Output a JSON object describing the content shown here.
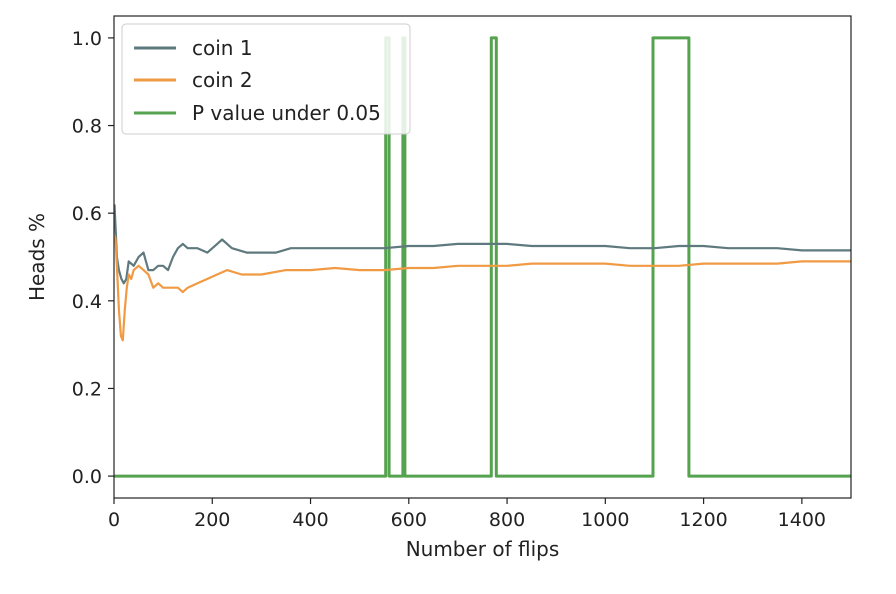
{
  "chart_data": {
    "type": "line",
    "xlabel": "Number of flips",
    "ylabel": "Heads %",
    "xlim": [
      0,
      1500
    ],
    "ylim": [
      -0.05,
      1.05
    ],
    "xticks": [
      0,
      200,
      400,
      600,
      800,
      1000,
      1200,
      1400
    ],
    "yticks": [
      0.0,
      0.2,
      0.4,
      0.6,
      0.8,
      1.0
    ],
    "xtick_labels": [
      "0",
      "200",
      "400",
      "600",
      "800",
      "1000",
      "1200",
      "1400"
    ],
    "ytick_labels": [
      "0.0",
      "0.2",
      "0.4",
      "0.6",
      "0.8",
      "1.0"
    ],
    "grid": false,
    "legend_position": "top-left",
    "series": [
      {
        "name": "coin 1",
        "color": "#5f7a7f",
        "x": [
          1,
          3,
          6,
          10,
          15,
          20,
          25,
          30,
          40,
          50,
          60,
          70,
          80,
          90,
          100,
          110,
          120,
          130,
          140,
          150,
          170,
          190,
          210,
          220,
          240,
          270,
          300,
          330,
          360,
          400,
          450,
          500,
          550,
          600,
          650,
          700,
          750,
          800,
          850,
          900,
          950,
          1000,
          1050,
          1100,
          1150,
          1200,
          1250,
          1300,
          1350,
          1400,
          1450,
          1500
        ],
        "y": [
          0.62,
          0.57,
          0.5,
          0.47,
          0.45,
          0.44,
          0.45,
          0.49,
          0.48,
          0.5,
          0.51,
          0.47,
          0.47,
          0.48,
          0.48,
          0.47,
          0.5,
          0.52,
          0.53,
          0.52,
          0.52,
          0.51,
          0.53,
          0.54,
          0.52,
          0.51,
          0.51,
          0.51,
          0.52,
          0.52,
          0.52,
          0.52,
          0.52,
          0.525,
          0.525,
          0.53,
          0.53,
          0.53,
          0.525,
          0.525,
          0.525,
          0.525,
          0.52,
          0.52,
          0.525,
          0.525,
          0.52,
          0.52,
          0.52,
          0.515,
          0.515,
          0.515
        ]
      },
      {
        "name": "coin 2",
        "color": "#f09a44",
        "x": [
          1,
          3,
          6,
          10,
          14,
          18,
          22,
          26,
          30,
          35,
          40,
          50,
          60,
          70,
          80,
          90,
          100,
          110,
          120,
          130,
          140,
          150,
          170,
          190,
          210,
          230,
          260,
          300,
          350,
          400,
          450,
          500,
          550,
          600,
          650,
          700,
          750,
          800,
          850,
          900,
          950,
          1000,
          1050,
          1100,
          1150,
          1200,
          1250,
          1300,
          1350,
          1400,
          1450,
          1500
        ],
        "y": [
          0.55,
          0.54,
          0.48,
          0.38,
          0.32,
          0.31,
          0.38,
          0.43,
          0.46,
          0.45,
          0.47,
          0.48,
          0.47,
          0.46,
          0.43,
          0.44,
          0.43,
          0.43,
          0.43,
          0.43,
          0.42,
          0.43,
          0.44,
          0.45,
          0.46,
          0.47,
          0.46,
          0.46,
          0.47,
          0.47,
          0.475,
          0.47,
          0.47,
          0.475,
          0.475,
          0.48,
          0.48,
          0.48,
          0.485,
          0.485,
          0.485,
          0.485,
          0.48,
          0.48,
          0.48,
          0.485,
          0.485,
          0.485,
          0.485,
          0.49,
          0.49,
          0.49
        ]
      },
      {
        "name": "P value under 0.05",
        "color": "#55a24f",
        "step_intervals": [
          [
            553,
            560
          ],
          [
            588,
            592
          ],
          [
            768,
            778
          ],
          [
            1097,
            1170
          ]
        ],
        "x": [
          0,
          553,
          553,
          560,
          560,
          588,
          588,
          592,
          592,
          768,
          768,
          778,
          778,
          1097,
          1097,
          1170,
          1170,
          1500
        ],
        "y": [
          0,
          0,
          1,
          1,
          0,
          0,
          1,
          1,
          0,
          0,
          1,
          1,
          0,
          0,
          1,
          1,
          0,
          0
        ]
      }
    ]
  }
}
